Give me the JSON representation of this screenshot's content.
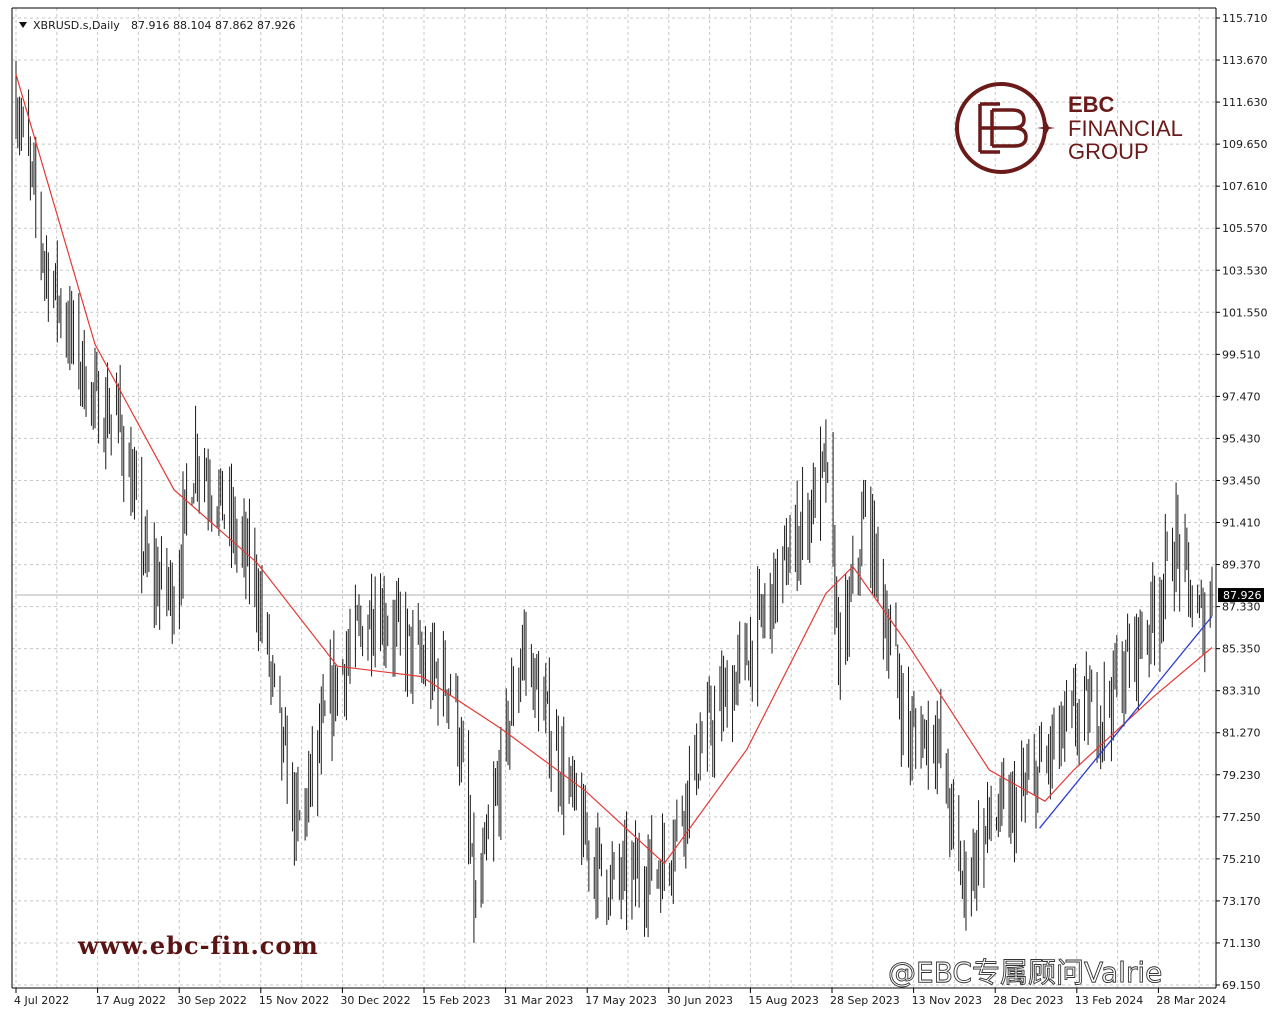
{
  "header": {
    "symbol_label": "XBRUSD.s,Daily",
    "ohlc_label": "87.916 88.104 87.862 87.926"
  },
  "current_price_label": "87.926",
  "brand": {
    "name_line1": "EBC",
    "name_line2": "FINANCIAL",
    "name_line3": "GROUP",
    "color": "#6b1a1a"
  },
  "website": "www.ebc-fin.com",
  "watermark": "@EBC专属顾问Valrie",
  "chart_data": {
    "type": "bar",
    "title": "XBRUSD.s,Daily",
    "y_ticks": [
      "115.710",
      "113.670",
      "111.630",
      "109.650",
      "107.610",
      "105.570",
      "103.530",
      "101.550",
      "99.510",
      "97.470",
      "95.430",
      "93.450",
      "91.410",
      "89.370",
      "87.330",
      "85.350",
      "83.310",
      "81.270",
      "79.230",
      "77.250",
      "75.210",
      "73.170",
      "71.130",
      "69.150"
    ],
    "x_ticks": [
      "4 Jul 2022",
      "17 Aug 2022",
      "30 Sep 2022",
      "15 Nov 2022",
      "30 Dec 2022",
      "15 Feb 2023",
      "31 Mar 2023",
      "17 May 2023",
      "30 Jun 2023",
      "15 Aug 2023",
      "28 Sep 2023",
      "13 Nov 2023",
      "28 Dec 2023",
      "13 Feb 2024",
      "28 Mar 2024"
    ],
    "ylim": [
      69.15,
      115.71
    ],
    "last_close": 87.926,
    "price_keypoints": [
      {
        "date": "4 Jul 2022",
        "close": 112.0
      },
      {
        "date": "20 Jul 2022",
        "close": 104.0
      },
      {
        "date": "17 Aug 2022",
        "close": 97.0
      },
      {
        "date": "30 Aug 2022",
        "close": 96.5
      },
      {
        "date": "15 Sep 2022",
        "close": 89.0
      },
      {
        "date": "30 Sep 2022",
        "close": 88.0
      },
      {
        "date": "12 Oct 2022",
        "close": 95.0
      },
      {
        "date": "25 Oct 2022",
        "close": 92.5
      },
      {
        "date": "15 Nov 2022",
        "close": 88.5
      },
      {
        "date": "30 Nov 2022",
        "close": 80.0
      },
      {
        "date": "8 Dec 2022",
        "close": 76.5
      },
      {
        "date": "30 Dec 2022",
        "close": 84.0
      },
      {
        "date": "20 Jan 2023",
        "close": 87.5
      },
      {
        "date": "15 Feb 2023",
        "close": 84.5
      },
      {
        "date": "5 Mar 2023",
        "close": 83.5
      },
      {
        "date": "17 Mar 2023",
        "close": 72.5
      },
      {
        "date": "31 Mar 2023",
        "close": 79.5
      },
      {
        "date": "12 Apr 2023",
        "close": 85.5
      },
      {
        "date": "17 May 2023",
        "close": 76.0
      },
      {
        "date": "31 May 2023",
        "close": 74.0
      },
      {
        "date": "30 Jun 2023",
        "close": 75.0
      },
      {
        "date": "20 Jul 2023",
        "close": 80.5
      },
      {
        "date": "15 Aug 2023",
        "close": 85.0
      },
      {
        "date": "28 Sep 2023",
        "close": 94.0
      },
      {
        "date": "6 Oct 2023",
        "close": 84.5
      },
      {
        "date": "20 Oct 2023",
        "close": 92.0
      },
      {
        "date": "13 Nov 2023",
        "close": 81.0
      },
      {
        "date": "28 Nov 2023",
        "close": 81.5
      },
      {
        "date": "13 Dec 2023",
        "close": 74.0
      },
      {
        "date": "28 Dec 2023",
        "close": 77.0
      },
      {
        "date": "10 Jan 2024",
        "close": 77.5
      },
      {
        "date": "13 Feb 2024",
        "close": 82.0
      },
      {
        "date": "1 Mar 2024",
        "close": 82.5
      },
      {
        "date": "28 Mar 2024",
        "close": 87.0
      },
      {
        "date": "10 Apr 2024",
        "close": 90.5
      },
      {
        "date": "22 Apr 2024",
        "close": 86.5
      },
      {
        "date": "30 Apr 2024",
        "close": 87.9
      }
    ],
    "ma_series": [
      {
        "date": "4 Jul 2022",
        "value": 113.0
      },
      {
        "date": "17 Aug 2022",
        "value": 100.0
      },
      {
        "date": "30 Sep 2022",
        "value": 93.0
      },
      {
        "date": "15 Nov 2022",
        "value": 89.5
      },
      {
        "date": "30 Dec 2022",
        "value": 84.5
      },
      {
        "date": "15 Feb 2023",
        "value": 84.0
      },
      {
        "date": "31 Mar 2023",
        "value": 81.5
      },
      {
        "date": "17 May 2023",
        "value": 78.5
      },
      {
        "date": "30 Jun 2023",
        "value": 75.0
      },
      {
        "date": "15 Aug 2023",
        "value": 80.5
      },
      {
        "date": "28 Sep 2023",
        "value": 88.0
      },
      {
        "date": "13 Oct 2023",
        "value": 89.3
      },
      {
        "date": "13 Nov 2023",
        "value": 85.5
      },
      {
        "date": "28 Dec 2023",
        "value": 79.5
      },
      {
        "date": "28 Jan 2024",
        "value": 78.0
      },
      {
        "date": "13 Feb 2024",
        "value": 79.5
      },
      {
        "date": "28 Mar 2024",
        "value": 83.0
      },
      {
        "date": "30 Apr 2024",
        "value": 85.4
      }
    ],
    "trendline": {
      "from": {
        "date": "25 Jan 2024",
        "value": 76.7
      },
      "to": {
        "date": "30 Apr 2024",
        "value": 86.9
      }
    },
    "grid": true
  }
}
